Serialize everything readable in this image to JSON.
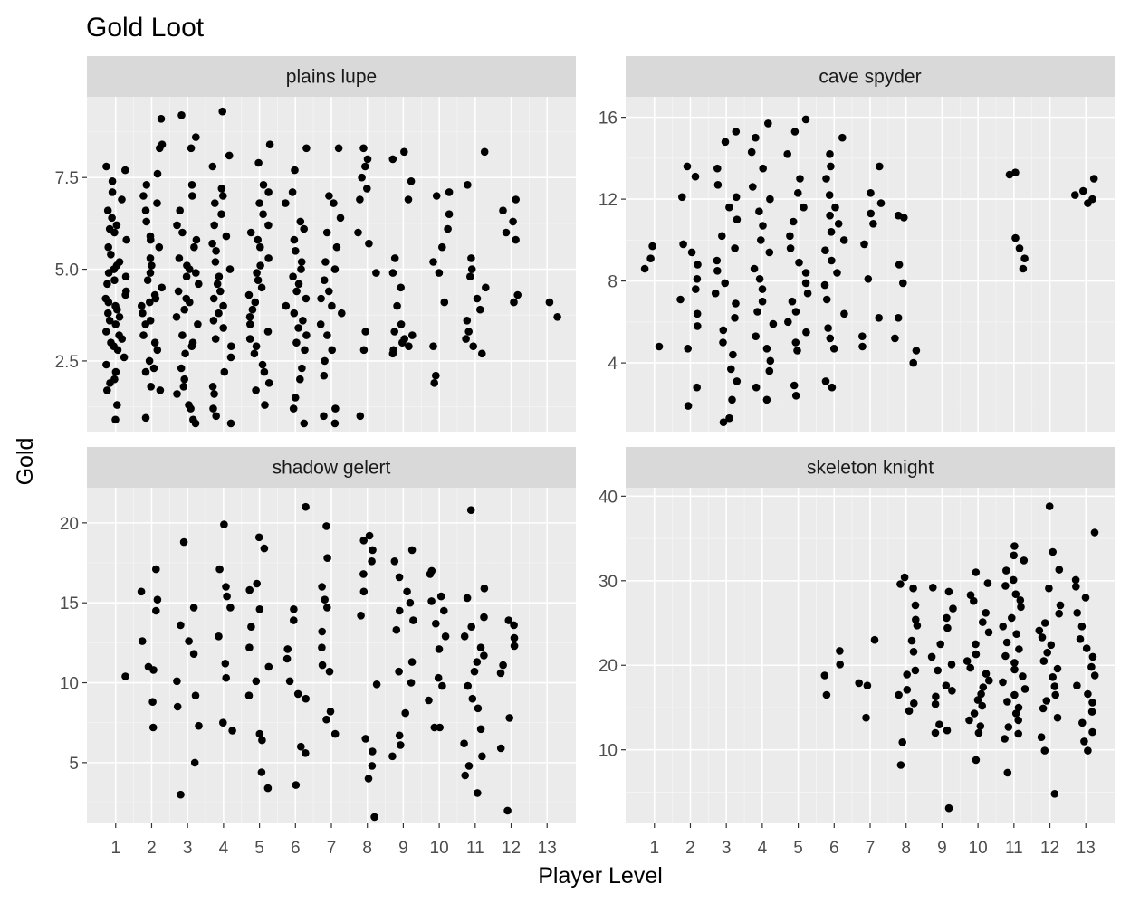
{
  "chart_data": {
    "type": "scatter",
    "title": "Gold Loot",
    "xlabel": "Player Level",
    "ylabel": "Gold",
    "x_ticks": [
      1,
      2,
      3,
      4,
      5,
      6,
      7,
      8,
      9,
      10,
      11,
      12,
      13
    ],
    "xlim": [
      0.2,
      13.8
    ],
    "grid": true,
    "panels": [
      {
        "name": "plains lupe",
        "ylim": [
          0.55,
          9.7
        ],
        "y_ticks": [
          2.5,
          5.0,
          7.5
        ],
        "y_tick_labels": [
          "2.5",
          "5.0",
          "7.5"
        ],
        "groups": [
          {
            "x": 1,
            "values": [
              0.9,
              1.3,
              1.7,
              1.9,
              2.0,
              2.2,
              2.4,
              2.6,
              2.8,
              2.9,
              3.0,
              3.1,
              3.2,
              3.3,
              3.5,
              3.6,
              3.7,
              3.8,
              3.9,
              4.0,
              4.1,
              4.2,
              4.3,
              4.4,
              4.6,
              4.7,
              4.8,
              4.9,
              5.0,
              5.1,
              5.2,
              5.4,
              5.6,
              5.8,
              6.0,
              6.1,
              6.2,
              6.4,
              6.6,
              6.9,
              7.1,
              7.4,
              7.8,
              7.7
            ]
          },
          {
            "x": 2,
            "values": [
              0.95,
              1.7,
              1.8,
              2.2,
              2.3,
              2.5,
              2.8,
              3.0,
              3.2,
              3.5,
              3.6,
              3.8,
              4.0,
              4.1,
              4.2,
              4.3,
              4.5,
              4.7,
              4.9,
              5.1,
              5.3,
              5.6,
              5.8,
              5.9,
              6.3,
              6.6,
              6.8,
              7.0,
              7.3,
              7.6,
              8.3,
              8.4,
              9.1
            ]
          },
          {
            "x": 3,
            "values": [
              0.8,
              0.9,
              1.2,
              1.3,
              1.6,
              1.8,
              2.0,
              2.3,
              2.7,
              2.9,
              3.0,
              3.2,
              3.5,
              3.7,
              3.9,
              4.1,
              4.2,
              4.4,
              4.6,
              4.8,
              4.9,
              5.0,
              5.1,
              5.3,
              5.6,
              5.8,
              6.0,
              6.2,
              6.6,
              7.0,
              7.3,
              8.3,
              8.6,
              9.2
            ]
          },
          {
            "x": 4,
            "values": [
              0.8,
              1.0,
              1.2,
              1.6,
              1.8,
              2.2,
              2.6,
              2.9,
              3.1,
              3.4,
              3.6,
              3.8,
              4.0,
              4.2,
              4.4,
              4.6,
              4.8,
              5.0,
              5.2,
              5.5,
              5.7,
              5.9,
              6.2,
              6.5,
              6.8,
              7.0,
              7.2,
              7.8,
              8.1,
              9.3
            ]
          },
          {
            "x": 5,
            "values": [
              1.3,
              1.7,
              1.9,
              2.2,
              2.4,
              2.7,
              2.9,
              3.1,
              3.3,
              3.5,
              3.7,
              3.9,
              4.1,
              4.3,
              4.5,
              4.7,
              4.9,
              5.1,
              5.3,
              5.6,
              5.8,
              6.0,
              6.2,
              6.5,
              6.8,
              7.1,
              7.3,
              7.9,
              8.4
            ]
          },
          {
            "x": 6,
            "values": [
              0.8,
              1.2,
              1.5,
              2.0,
              2.3,
              2.8,
              3.0,
              3.2,
              3.4,
              3.6,
              3.8,
              4.0,
              4.2,
              4.4,
              4.6,
              4.8,
              5.0,
              5.2,
              5.5,
              5.8,
              6.1,
              6.3,
              6.8,
              7.1,
              7.7,
              8.3
            ]
          },
          {
            "x": 7,
            "values": [
              0.8,
              1.0,
              1.2,
              2.1,
              2.5,
              2.8,
              3.2,
              3.5,
              3.8,
              4.0,
              4.2,
              4.4,
              4.7,
              5.0,
              5.2,
              5.6,
              6.0,
              6.4,
              6.8,
              7.0,
              8.3
            ]
          },
          {
            "x": 8,
            "values": [
              1.0,
              2.8,
              3.3,
              4.9,
              5.7,
              6.0,
              6.9,
              7.2,
              7.5,
              7.8,
              8.0,
              8.3
            ]
          },
          {
            "x": 9,
            "values": [
              2.7,
              2.8,
              2.9,
              3.0,
              3.1,
              3.2,
              3.3,
              3.5,
              4.0,
              4.5,
              4.9,
              5.3,
              6.9,
              7.4,
              8.0,
              8.2
            ]
          },
          {
            "x": 10,
            "values": [
              1.9,
              2.1,
              2.9,
              4.1,
              4.9,
              5.2,
              5.6,
              6.1,
              6.5,
              7.0,
              7.1
            ]
          },
          {
            "x": 11,
            "values": [
              2.7,
              2.9,
              3.1,
              3.3,
              3.6,
              3.9,
              4.2,
              4.5,
              4.8,
              5.0,
              5.3,
              7.3,
              8.2
            ]
          },
          {
            "x": 12,
            "values": [
              4.1,
              4.3,
              5.8,
              6.0,
              6.3,
              6.6,
              6.9
            ]
          },
          {
            "x": 13,
            "values": [
              3.7,
              4.1
            ]
          }
        ]
      },
      {
        "name": "cave spyder",
        "ylim": [
          0.6,
          17.0
        ],
        "y_ticks": [
          4,
          8,
          12,
          16
        ],
        "y_tick_labels": [
          "4",
          "8",
          "12",
          "16"
        ],
        "groups": [
          {
            "x": 1,
            "values": [
              4.8,
              8.6,
              9.1,
              9.7
            ]
          },
          {
            "x": 2,
            "values": [
              1.9,
              2.8,
              4.7,
              5.8,
              6.4,
              7.1,
              7.6,
              8.1,
              8.8,
              9.4,
              9.8,
              12.1,
              13.1,
              13.6
            ]
          },
          {
            "x": 3,
            "values": [
              1.1,
              1.3,
              2.2,
              3.1,
              3.7,
              4.4,
              5.0,
              5.6,
              6.2,
              6.9,
              7.4,
              7.9,
              8.5,
              9.0,
              9.6,
              10.2,
              11.0,
              11.6,
              12.1,
              12.7,
              13.5,
              14.8,
              15.3
            ]
          },
          {
            "x": 4,
            "values": [
              2.2,
              2.8,
              3.6,
              4.1,
              4.7,
              5.3,
              5.9,
              6.5,
              7.0,
              7.6,
              8.1,
              8.6,
              9.4,
              10.0,
              10.7,
              11.4,
              12.0,
              12.6,
              13.5,
              14.3,
              15.0,
              15.7
            ]
          },
          {
            "x": 5,
            "values": [
              2.4,
              2.9,
              4.6,
              5.0,
              5.5,
              6.0,
              6.5,
              7.0,
              7.4,
              7.9,
              8.4,
              8.9,
              9.6,
              10.2,
              10.9,
              11.6,
              12.3,
              13.0,
              14.2,
              15.3,
              15.9
            ]
          },
          {
            "x": 6,
            "values": [
              2.8,
              3.1,
              4.7,
              5.2,
              5.7,
              6.4,
              7.1,
              7.8,
              8.4,
              9.0,
              9.5,
              10.0,
              10.4,
              10.8,
              11.2,
              11.6,
              12.2,
              13.0,
              13.6,
              14.2,
              15.0
            ]
          },
          {
            "x": 7,
            "values": [
              4.8,
              5.3,
              6.2,
              8.1,
              9.8,
              10.8,
              11.3,
              11.8,
              12.3,
              13.6
            ]
          },
          {
            "x": 8,
            "values": [
              4.0,
              4.6,
              5.2,
              6.2,
              7.9,
              8.8,
              11.1,
              11.2
            ]
          },
          {
            "x": 11,
            "values": [
              8.6,
              9.1,
              9.6,
              10.1,
              13.2,
              13.3
            ]
          },
          {
            "x": 13,
            "values": [
              11.8,
              12.0,
              12.2,
              12.4,
              13.0
            ]
          }
        ]
      },
      {
        "name": "shadow gelert",
        "ylim": [
          1.2,
          22.2
        ],
        "y_ticks": [
          5,
          10,
          15,
          20
        ],
        "y_tick_labels": [
          "5",
          "10",
          "15",
          "20"
        ],
        "groups": [
          {
            "x": 1,
            "values": [
              10.4
            ]
          },
          {
            "x": 2,
            "values": [
              7.2,
              8.8,
              10.8,
              11.0,
              12.6,
              14.5,
              15.2,
              15.7,
              17.1
            ]
          },
          {
            "x": 3,
            "values": [
              3.0,
              5.0,
              7.3,
              8.5,
              9.2,
              10.1,
              11.8,
              12.6,
              13.6,
              14.7,
              18.8
            ]
          },
          {
            "x": 4,
            "values": [
              7.0,
              7.5,
              10.3,
              11.2,
              12.9,
              14.7,
              15.4,
              16.0,
              17.1,
              19.9
            ]
          },
          {
            "x": 5,
            "values": [
              3.4,
              4.4,
              6.4,
              6.8,
              9.2,
              10.1,
              11.0,
              12.2,
              13.5,
              14.6,
              15.8,
              16.2,
              18.4,
              19.1
            ]
          },
          {
            "x": 6,
            "values": [
              3.6,
              5.6,
              6.0,
              9.0,
              9.3,
              10.1,
              11.5,
              12.1,
              13.9,
              14.6,
              21.0
            ]
          },
          {
            "x": 7,
            "values": [
              6.8,
              7.7,
              8.2,
              10.7,
              11.1,
              12.2,
              13.2,
              14.7,
              15.2,
              16.0,
              17.8,
              19.8
            ]
          },
          {
            "x": 8,
            "values": [
              1.6,
              4.0,
              4.8,
              5.7,
              6.5,
              9.9,
              14.2,
              15.7,
              16.8,
              17.6,
              18.3,
              18.9,
              19.2
            ]
          },
          {
            "x": 9,
            "values": [
              5.4,
              6.1,
              6.7,
              8.1,
              10.0,
              10.7,
              11.3,
              13.3,
              13.9,
              14.5,
              15.0,
              15.7,
              16.6,
              17.6,
              18.3
            ]
          },
          {
            "x": 10,
            "values": [
              7.2,
              7.2,
              8.9,
              9.8,
              10.3,
              12.1,
              12.9,
              13.7,
              14.5,
              15.1,
              15.4,
              16.8,
              17.0
            ]
          },
          {
            "x": 11,
            "values": [
              3.1,
              4.2,
              4.8,
              5.4,
              6.2,
              7.1,
              8.4,
              9.0,
              9.8,
              10.7,
              11.3,
              11.7,
              12.2,
              12.9,
              13.5,
              14.1,
              15.3,
              15.9,
              20.8
            ]
          },
          {
            "x": 12,
            "values": [
              2.0,
              5.9,
              7.8,
              10.6,
              11.1,
              12.3,
              12.8,
              13.6,
              13.9
            ]
          }
        ]
      },
      {
        "name": "skeleton knight",
        "ylim": [
          1.3,
          41.0
        ],
        "y_ticks": [
          10,
          20,
          30,
          40
        ],
        "y_tick_labels": [
          "10",
          "20",
          "30",
          "40"
        ],
        "groups": [
          {
            "x": 6,
            "values": [
              16.5,
              18.8,
              20.1,
              21.7
            ]
          },
          {
            "x": 7,
            "values": [
              13.8,
              17.6,
              17.9,
              23.0
            ]
          },
          {
            "x": 8,
            "values": [
              8.2,
              10.9,
              14.6,
              15.5,
              16.5,
              17.1,
              18.9,
              19.4,
              21.6,
              22.9,
              24.7,
              25.4,
              27.1,
              29.1,
              29.6,
              30.4
            ]
          },
          {
            "x": 9,
            "values": [
              3.1,
              12.0,
              12.3,
              13.0,
              15.4,
              16.3,
              17.0,
              17.6,
              19.4,
              20.1,
              21.0,
              22.5,
              24.4,
              25.6,
              26.7,
              28.7,
              29.2
            ]
          },
          {
            "x": 10,
            "values": [
              8.8,
              12.0,
              12.8,
              13.5,
              14.3,
              15.2,
              15.9,
              16.6,
              17.4,
              18.2,
              19.0,
              19.7,
              20.5,
              21.3,
              22.5,
              23.9,
              25.1,
              26.2,
              27.6,
              28.3,
              29.7,
              31.0
            ]
          },
          {
            "x": 11,
            "values": [
              7.3,
              11.3,
              11.9,
              12.7,
              13.5,
              14.3,
              15.0,
              15.7,
              16.5,
              17.2,
              18.0,
              18.7,
              19.5,
              20.3,
              21.1,
              21.9,
              22.7,
              23.7,
              24.6,
              25.6,
              26.9,
              27.7,
              28.4,
              29.4,
              30.1,
              31.2,
              32.4,
              33.0,
              34.1
            ]
          },
          {
            "x": 12,
            "values": [
              4.8,
              9.9,
              11.5,
              13.8,
              14.9,
              15.8,
              16.5,
              17.5,
              18.6,
              19.6,
              20.5,
              21.5,
              22.4,
              23.3,
              24.1,
              25.0,
              26.1,
              27.1,
              29.1,
              31.3,
              33.4,
              38.8
            ]
          },
          {
            "x": 13,
            "values": [
              9.9,
              11.0,
              12.1,
              13.2,
              14.5,
              15.6,
              16.6,
              17.6,
              18.8,
              19.8,
              21.0,
              22.0,
              23.1,
              24.6,
              26.2,
              28.0,
              29.3,
              30.1,
              35.7
            ]
          }
        ]
      }
    ]
  }
}
